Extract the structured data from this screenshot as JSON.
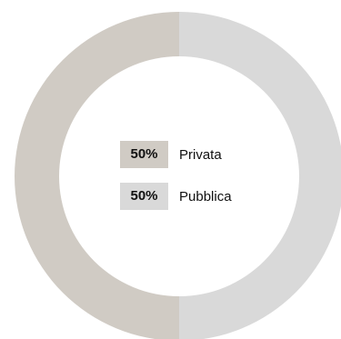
{
  "chart_data": {
    "type": "pie",
    "donut": true,
    "legend_placement": "center",
    "slices": [
      {
        "label": "Privata",
        "value": 50,
        "display": "50%",
        "color": "#d0cbc4"
      },
      {
        "label": "Pubblica",
        "value": 50,
        "display": "50%",
        "color": "#d9d9d9"
      }
    ]
  }
}
